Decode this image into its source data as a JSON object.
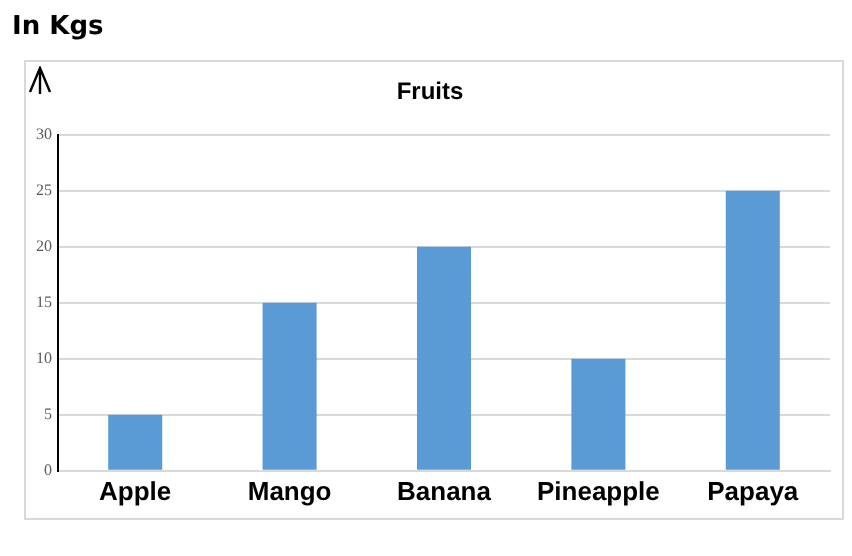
{
  "chart_data": {
    "type": "bar",
    "title": "Fruits",
    "ylabel": "In Kgs",
    "categories": [
      "Apple",
      "Mango",
      "Banana",
      "Pineapple",
      "Papaya"
    ],
    "values": [
      5,
      15,
      20,
      10,
      25
    ],
    "color": "#5b9bd5",
    "ylim": [
      0,
      30
    ],
    "yticks": [
      0,
      5,
      10,
      15,
      20,
      25,
      30
    ],
    "grid": "y",
    "legend": false
  }
}
